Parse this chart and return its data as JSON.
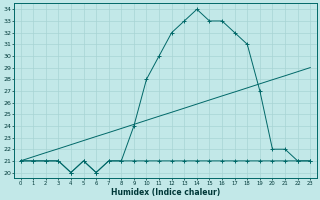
{
  "xlabel": "Humidex (Indice chaleur)",
  "xlim": [
    -0.5,
    23.5
  ],
  "ylim": [
    19.5,
    34.5
  ],
  "x_ticks": [
    0,
    1,
    2,
    3,
    4,
    5,
    6,
    7,
    8,
    9,
    10,
    11,
    12,
    13,
    14,
    15,
    16,
    17,
    18,
    19,
    20,
    21,
    22,
    23
  ],
  "y_ticks": [
    20,
    21,
    22,
    23,
    24,
    25,
    26,
    27,
    28,
    29,
    30,
    31,
    32,
    33,
    34
  ],
  "bg_color": "#c2e8e8",
  "line_color": "#006868",
  "grid_color": "#a8d4d4",
  "series_max": {
    "x": [
      0,
      1,
      2,
      3,
      4,
      5,
      6,
      7,
      8,
      9,
      10,
      11,
      12,
      13,
      14,
      15,
      16,
      17,
      18,
      19,
      20,
      21,
      22,
      23
    ],
    "y": [
      21,
      21,
      21,
      21,
      20,
      21,
      20,
      21,
      21,
      24,
      28,
      30,
      32,
      33,
      34,
      33,
      33,
      32,
      31,
      27,
      22,
      22,
      21,
      21
    ]
  },
  "series_min": {
    "x": [
      0,
      1,
      2,
      3,
      4,
      5,
      6,
      7,
      8,
      9,
      10,
      11,
      12,
      13,
      14,
      15,
      16,
      17,
      18,
      19,
      20,
      21,
      22,
      23
    ],
    "y": [
      21,
      21,
      21,
      21,
      20,
      21,
      20,
      21,
      21,
      21,
      21,
      21,
      21,
      21,
      21,
      21,
      21,
      21,
      21,
      21,
      21,
      21,
      21,
      21
    ]
  },
  "series_linear": {
    "x": [
      0,
      1,
      2,
      3,
      4,
      5,
      6,
      7,
      8,
      9,
      10,
      11,
      12,
      13,
      14,
      15,
      16,
      17,
      18,
      19,
      20,
      21,
      22,
      23
    ],
    "y": [
      21.0,
      21.35,
      21.7,
      22.04,
      22.39,
      22.74,
      23.09,
      23.43,
      23.78,
      24.13,
      24.48,
      24.83,
      25.17,
      25.52,
      25.87,
      26.22,
      26.57,
      26.91,
      27.26,
      27.61,
      27.96,
      28.3,
      28.65,
      29.0
    ]
  }
}
